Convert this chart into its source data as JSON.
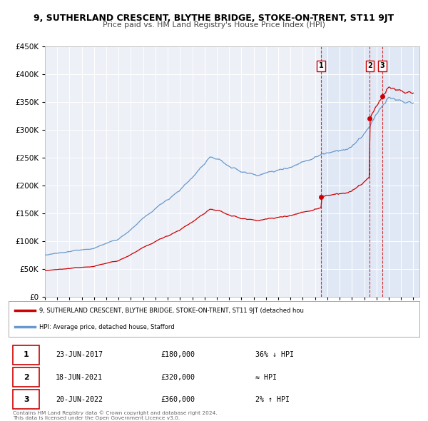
{
  "title": "9, SUTHERLAND CRESCENT, BLYTHE BRIDGE, STOKE-ON-TRENT, ST11 9JT",
  "subtitle": "Price paid vs. HM Land Registry's House Price Index (HPI)",
  "ylim": [
    0,
    450000
  ],
  "yticks": [
    0,
    50000,
    100000,
    150000,
    200000,
    250000,
    300000,
    350000,
    400000,
    450000
  ],
  "xlim_start": 1995.0,
  "xlim_end": 2025.5,
  "price_paid_color": "#cc0000",
  "hpi_color": "#6699cc",
  "background_color": "#eef0f8",
  "shading_color": "#dce6f5",
  "transactions": [
    {
      "date_year": 2017.48,
      "price": 180000,
      "label": "1"
    },
    {
      "date_year": 2021.46,
      "price": 320000,
      "label": "2"
    },
    {
      "date_year": 2022.47,
      "price": 360000,
      "label": "3"
    }
  ],
  "transaction_table": [
    {
      "num": "1",
      "date": "23-JUN-2017",
      "price": "£180,000",
      "vs_hpi": "36% ↓ HPI"
    },
    {
      "num": "2",
      "date": "18-JUN-2021",
      "price": "£320,000",
      "vs_hpi": "≈ HPI"
    },
    {
      "num": "3",
      "date": "20-JUN-2022",
      "price": "£360,000",
      "vs_hpi": "2% ↑ HPI"
    }
  ],
  "legend_label_red": "9, SUTHERLAND CRESCENT, BLYTHE BRIDGE, STOKE-ON-TRENT, ST11 9JT (detached hou",
  "legend_label_blue": "HPI: Average price, detached house, Stafford",
  "footer1": "Contains HM Land Registry data © Crown copyright and database right 2024.",
  "footer2": "This data is licensed under the Open Government Licence v3.0."
}
